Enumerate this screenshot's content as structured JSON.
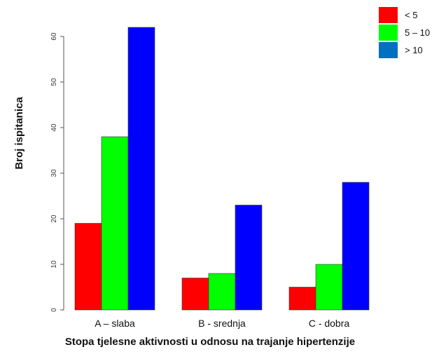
{
  "chart_data": {
    "type": "bar",
    "title": "",
    "xlabel": "Stopa tjelesne aktivnosti u odnosu na trajanje hipertenzije",
    "ylabel": "Broj ispitanica",
    "categories": [
      "A – slaba",
      "B - srednja",
      "C - dobra"
    ],
    "series": [
      {
        "name": "< 5",
        "color": "#ff0000",
        "values": [
          19,
          7,
          5
        ]
      },
      {
        "name": "5 – 10",
        "color": "#00ff00",
        "values": [
          38,
          8,
          10
        ]
      },
      {
        "name": "> 10",
        "color": "#0000ff",
        "values": [
          62,
          23,
          28
        ]
      }
    ],
    "legend_swatch_colors": [
      "#ff0000",
      "#00ff00",
      "#0070c0"
    ],
    "ylim": [
      0,
      65
    ],
    "yticks": [
      0,
      10,
      20,
      30,
      40,
      50,
      60
    ],
    "grid": false,
    "legend_position": "top-right"
  }
}
